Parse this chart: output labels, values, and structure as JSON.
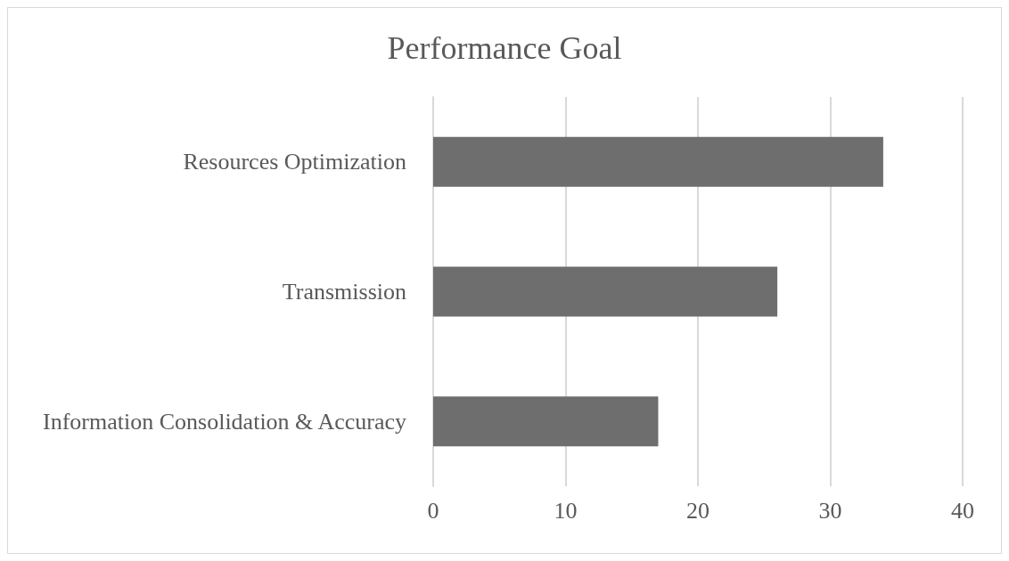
{
  "chart_data": {
    "type": "bar",
    "orientation": "horizontal",
    "title": "Performance Goal",
    "categories": [
      "Resources Optimization",
      "Transmission",
      "Information Consolidation & Accuracy"
    ],
    "values": [
      34,
      26,
      17
    ],
    "color": "#6e6e6e",
    "xlim": [
      0,
      40
    ],
    "xticks": [
      0,
      10,
      20,
      30,
      40
    ],
    "grid": "x"
  }
}
